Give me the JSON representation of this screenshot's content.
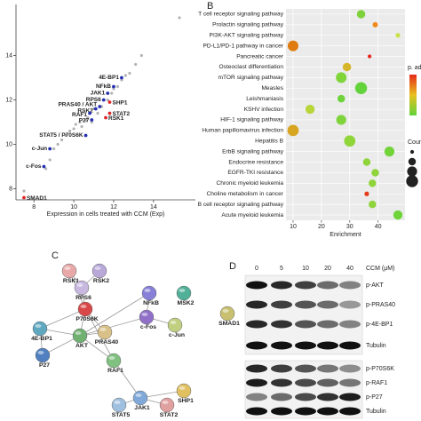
{
  "chart_data": [
    {
      "type": "scatter",
      "xlabel": "Expression in cells treated with CCM (Exp)",
      "xlim": [
        7.1,
        16.1
      ],
      "ylim": [
        7.5,
        16.3
      ],
      "xticks": [
        8,
        10,
        12,
        14
      ],
      "yticks": [
        8,
        10,
        12,
        14
      ],
      "series": [
        {
          "color": "#b4b4b4",
          "x": [
            7.5,
            8.6,
            8.8,
            9.0,
            9.2,
            9.4,
            9.6,
            9.8,
            10.0,
            10.1,
            10.3,
            10.4,
            10.6,
            10.7,
            10.9,
            11.0,
            11.2,
            11.4,
            11.5,
            11.7,
            11.9,
            12.0,
            12.2,
            12.4,
            12.6,
            12.8,
            13.1,
            13.4,
            15.3
          ],
          "y": [
            7.9,
            8.9,
            9.3,
            9.8,
            10.0,
            10.2,
            10.4,
            10.6,
            10.7,
            10.9,
            11.0,
            10.8,
            11.1,
            11.2,
            11.0,
            11.6,
            11.4,
            11.7,
            12.0,
            12.0,
            12.3,
            12.5,
            12.6,
            12.9,
            13.1,
            13.2,
            13.6,
            14.0,
            15.7
          ]
        },
        {
          "color": "#2530b0",
          "labels": [
            "4E-BP1",
            "NFkB",
            "JAK1",
            "RPS6",
            "PRAS40 / AKT",
            "RSK2",
            "RAF1",
            "P27",
            "STAT5 / P70S6K",
            "c-Jun",
            "c-Fos"
          ],
          "x": [
            12.4,
            12.0,
            11.7,
            11.5,
            11.3,
            11.1,
            10.8,
            10.9,
            10.6,
            8.8,
            8.5
          ],
          "y": [
            13.0,
            12.6,
            12.3,
            12.0,
            11.7,
            11.6,
            11.4,
            11.1,
            10.4,
            9.8,
            9.0
          ]
        },
        {
          "color": "#e0252a",
          "labels": [
            "SHP1",
            "STAT2",
            "RSK1",
            "SMAD1"
          ],
          "x": [
            11.8,
            11.8,
            11.6,
            7.5
          ],
          "y": [
            11.9,
            11.4,
            11.2,
            7.6
          ]
        }
      ]
    },
    {
      "type": "dot",
      "xlabel": "Enrichment",
      "xlim": [
        7.5,
        49.5
      ],
      "xticks": [
        10,
        20,
        30,
        40
      ],
      "grid": true,
      "categories": [
        "T cell receptor signaling pathway",
        "Prolactin signaling pathway",
        "PI3K-AKT signaling pathway",
        "PD-L1/PD-1 pathway in cancer",
        "Pancreatic cancer",
        "Osteoclast differentiation",
        "mTOR signaling pathway",
        "Measles",
        "Leishmaniasis",
        "KSHV infection",
        "HIF-1 signaling pathway",
        "Human papillomavirus infection",
        "Hepatitis B",
        "ErbB signaling pathway",
        "Endocrine resistance",
        "EGFR-TKI resistance",
        "Chronic myeloid leukemia",
        "Choline metabolism in cancer",
        "B cell receptor signaling pathway",
        "Acute myeloid leukemia"
      ],
      "values": [
        34,
        39,
        47,
        10,
        37,
        29,
        27,
        34,
        27,
        16,
        27,
        10,
        30,
        44,
        36,
        39,
        38,
        36,
        38,
        47
      ],
      "sizes": [
        10,
        4,
        3,
        16,
        2,
        10,
        16,
        20,
        8,
        12,
        14,
        18,
        18,
        14,
        8,
        8,
        8,
        3,
        8,
        12
      ],
      "colors": [
        "#7dd23a",
        "#f08a1e",
        "#c9e04a",
        "#e07b10",
        "#e52a1a",
        "#d7b52b",
        "#7fd53a",
        "#62d33a",
        "#6ed43a",
        "#b8d63a",
        "#7ed43a",
        "#d8a520",
        "#8fd63a",
        "#73d43a",
        "#8ed43a",
        "#8ed43a",
        "#8ed43a",
        "#e43a1a",
        "#8ed43a",
        "#6fd43a"
      ],
      "color_legend_title": "p. adj",
      "size_legend_title": "Coun"
    }
  ],
  "panel_labels": [
    "B",
    "C",
    "D"
  ],
  "network": {
    "nodes": [
      {
        "label": "RSK1",
        "color": "#e8a8a8",
        "label_color": "#d02020"
      },
      {
        "label": "RSK2",
        "color": "#b8a8d8",
        "label_color": "#2530b0"
      },
      {
        "label": "RPS6",
        "color": "#c8b8e0",
        "label_color": "#2530b0"
      },
      {
        "label": "P70S6K",
        "color": "#d84848",
        "label_color": "#2530b0"
      },
      {
        "label": "NFkB",
        "color": "#8880d8",
        "label_color": "#2530b0"
      },
      {
        "label": "MSK2",
        "color": "#50b098",
        "label_color": "#2530b0"
      },
      {
        "label": "SMAD1",
        "color": "#c8c070",
        "label_color": "#d02020"
      },
      {
        "label": "c-Fos",
        "color": "#9070c8",
        "label_color": "#2530b0"
      },
      {
        "label": "c-Jun",
        "color": "#c0d080",
        "label_color": "#2530b0"
      },
      {
        "label": "4E-BP1",
        "color": "#60a8c0",
        "label_color": "#2530b0"
      },
      {
        "label": "AKT",
        "color": "#70b070",
        "label_color": "#2530b0"
      },
      {
        "label": "PRAS40",
        "color": "#d8c088",
        "label_color": "#2530b0"
      },
      {
        "label": "P27",
        "color": "#5080c0",
        "label_color": "#2530b0"
      },
      {
        "label": "RAF1",
        "color": "#80c080",
        "label_color": "#2530b0"
      },
      {
        "label": "SHP1",
        "color": "#e0c060",
        "label_color": "#d02020"
      },
      {
        "label": "JAK1",
        "color": "#80a8d8",
        "label_color": "#2530b0"
      },
      {
        "label": "STAT5",
        "color": "#a0c0e0",
        "label_color": "#2530b0"
      },
      {
        "label": "STAT2",
        "color": "#e0a0a0",
        "label_color": "#d02020"
      }
    ]
  },
  "blot": {
    "title": "CCM (μM)",
    "lanes": [
      "0",
      "5",
      "10",
      "20",
      "40"
    ],
    "rows": [
      "p-AKT",
      "p-PRAS40",
      "p-4E-BP1",
      "Tubulin",
      "p-P70S6K",
      "p-RAF1",
      "p-P27",
      "Tubulin"
    ]
  }
}
